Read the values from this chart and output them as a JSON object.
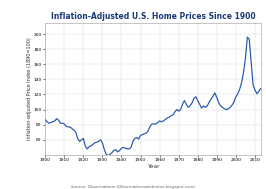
{
  "title": "Inflation-Adjusted U.S. Home Prices Since 1900",
  "xlabel": "Year",
  "ylabel": "Inflation-adjusted Price Index (1890=100)",
  "source": "Source: Observations (Observationsandnotes.blogspot.com)",
  "line_color": "#2255aa",
  "background_color": "#ffffff",
  "plot_bg_color": "#ffffff",
  "ylim": [
    40,
    215
  ],
  "xlim": [
    1900,
    2013
  ],
  "yticks": [
    60,
    80,
    100,
    120,
    140,
    160,
    180,
    200
  ],
  "xticks": [
    1900,
    1910,
    1920,
    1930,
    1940,
    1950,
    1960,
    1970,
    1980,
    1990,
    2000,
    2010
  ],
  "years": [
    1900,
    1901,
    1902,
    1903,
    1904,
    1905,
    1906,
    1907,
    1908,
    1909,
    1910,
    1911,
    1912,
    1913,
    1914,
    1915,
    1916,
    1917,
    1918,
    1919,
    1920,
    1921,
    1922,
    1923,
    1924,
    1925,
    1926,
    1927,
    1928,
    1929,
    1930,
    1931,
    1932,
    1933,
    1934,
    1935,
    1936,
    1937,
    1938,
    1939,
    1940,
    1941,
    1942,
    1943,
    1944,
    1945,
    1946,
    1947,
    1948,
    1949,
    1950,
    1951,
    1952,
    1953,
    1954,
    1955,
    1956,
    1957,
    1958,
    1959,
    1960,
    1961,
    1962,
    1963,
    1964,
    1965,
    1966,
    1967,
    1968,
    1969,
    1970,
    1971,
    1972,
    1973,
    1974,
    1975,
    1976,
    1977,
    1978,
    1979,
    1980,
    1981,
    1982,
    1983,
    1984,
    1985,
    1986,
    1987,
    1988,
    1989,
    1990,
    1991,
    1992,
    1993,
    1994,
    1995,
    1996,
    1997,
    1998,
    1999,
    2000,
    2001,
    2002,
    2003,
    2004,
    2005,
    2006,
    2007,
    2008,
    2009,
    2010,
    2011,
    2012,
    2013
  ],
  "values": [
    87,
    84,
    82,
    83,
    84,
    85,
    88,
    86,
    82,
    82,
    81,
    78,
    77,
    77,
    75,
    73,
    70,
    62,
    58,
    60,
    62,
    52,
    48,
    51,
    52,
    54,
    56,
    57,
    58,
    60,
    56,
    47,
    41,
    39,
    41,
    43,
    46,
    47,
    44,
    46,
    49,
    50,
    49,
    48,
    48,
    50,
    58,
    62,
    63,
    61,
    66,
    67,
    68,
    69,
    72,
    78,
    81,
    81,
    81,
    83,
    85,
    84,
    85,
    87,
    89,
    90,
    92,
    93,
    97,
    100,
    98,
    100,
    107,
    112,
    107,
    103,
    105,
    109,
    115,
    117,
    112,
    107,
    102,
    105,
    103,
    105,
    110,
    114,
    118,
    122,
    116,
    109,
    105,
    103,
    101,
    100,
    101,
    103,
    106,
    110,
    117,
    121,
    127,
    136,
    149,
    168,
    196,
    193,
    163,
    133,
    126,
    121,
    124,
    128
  ]
}
